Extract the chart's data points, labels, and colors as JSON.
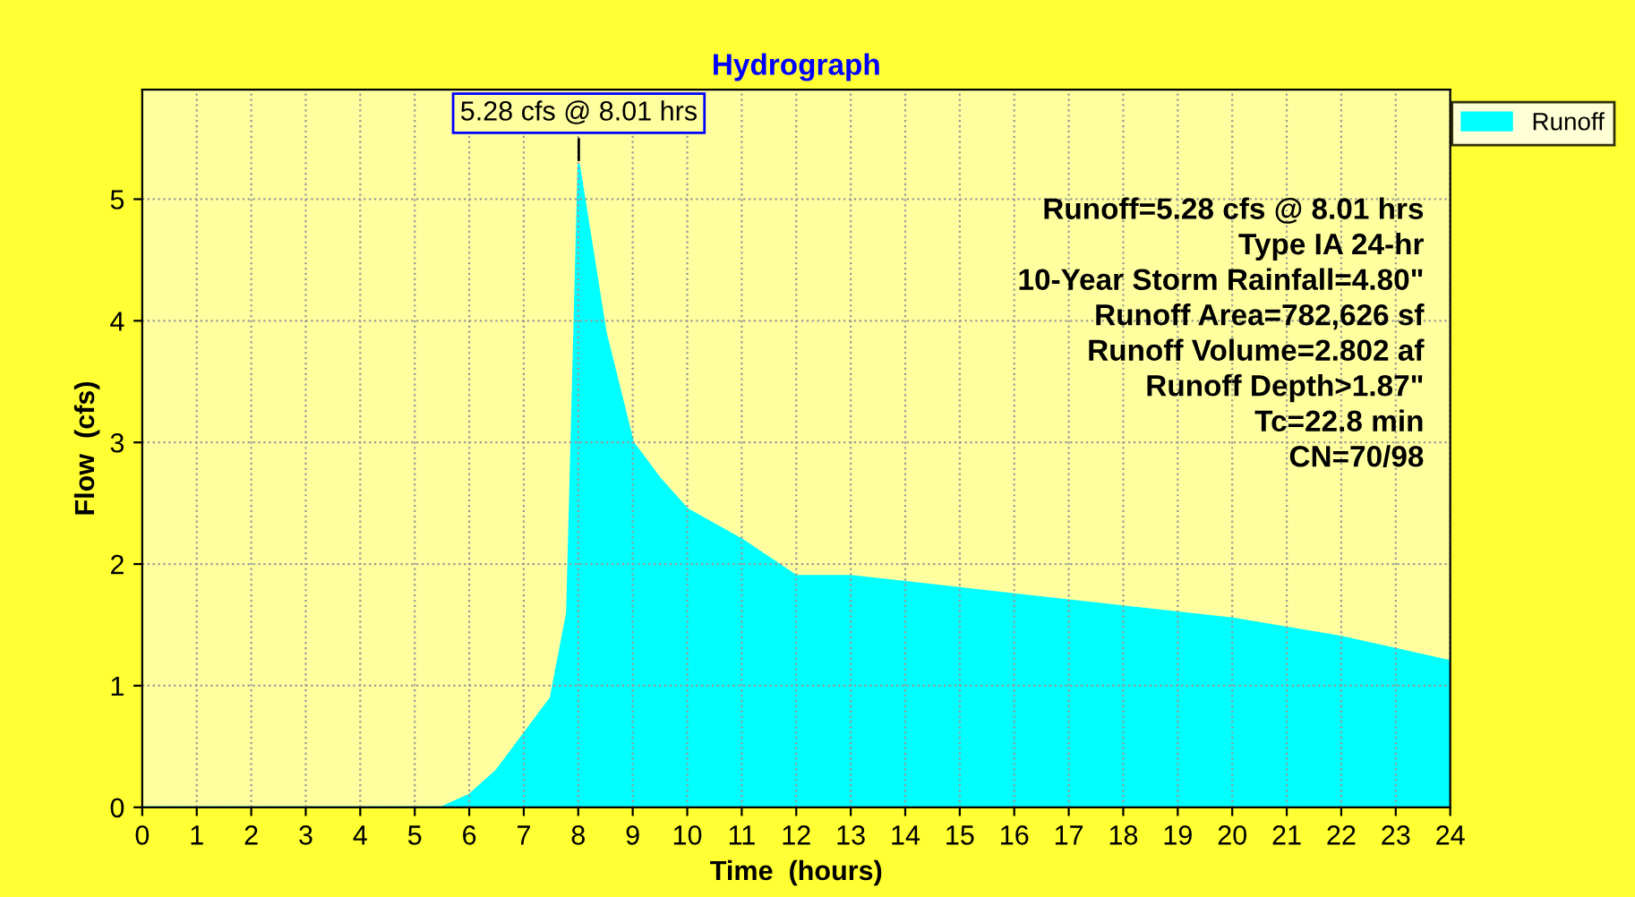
{
  "chart_data": {
    "type": "area",
    "title": "Hydrograph",
    "xlabel": "Time  (hours)",
    "ylabel": "Flow  (cfs)",
    "x": [
      0,
      5.5,
      6,
      6.5,
      7,
      7.5,
      7.8,
      8.01,
      8.5,
      9,
      9.5,
      10,
      11,
      12,
      13,
      14,
      16,
      18,
      20,
      22,
      24
    ],
    "series": [
      {
        "name": "Runoff",
        "color": "#00ffff",
        "values": [
          0,
          0,
          0.1,
          0.3,
          0.6,
          0.9,
          1.6,
          5.28,
          3.9,
          3.0,
          2.7,
          2.45,
          2.2,
          1.9,
          1.9,
          1.85,
          1.75,
          1.65,
          1.55,
          1.4,
          1.2
        ]
      }
    ],
    "xlim": [
      0,
      24
    ],
    "xticks": [
      0,
      1,
      2,
      3,
      4,
      5,
      6,
      7,
      8,
      9,
      10,
      11,
      12,
      13,
      14,
      15,
      16,
      17,
      18,
      19,
      20,
      21,
      22,
      23,
      24
    ],
    "ylim": [
      0,
      5.9
    ],
    "yticks": [
      0,
      1,
      2,
      3,
      4,
      5
    ],
    "grid": true,
    "legend": "top right",
    "annotations": [
      {
        "text": "5.28 cfs @ 8.01 hrs",
        "x": 8.01,
        "y": 5.28
      },
      "Runoff=5.28 cfs @ 8.01 hrs\nType IA 24-hr\n10-Year Storm Rainfall=4.80\"\nRunoff Area=782,626 sf\nRunoff Volume=2.802 af\nRunoff Depth>1.87\"\nTc=22.8 min\nCN=70/98"
    ]
  }
}
